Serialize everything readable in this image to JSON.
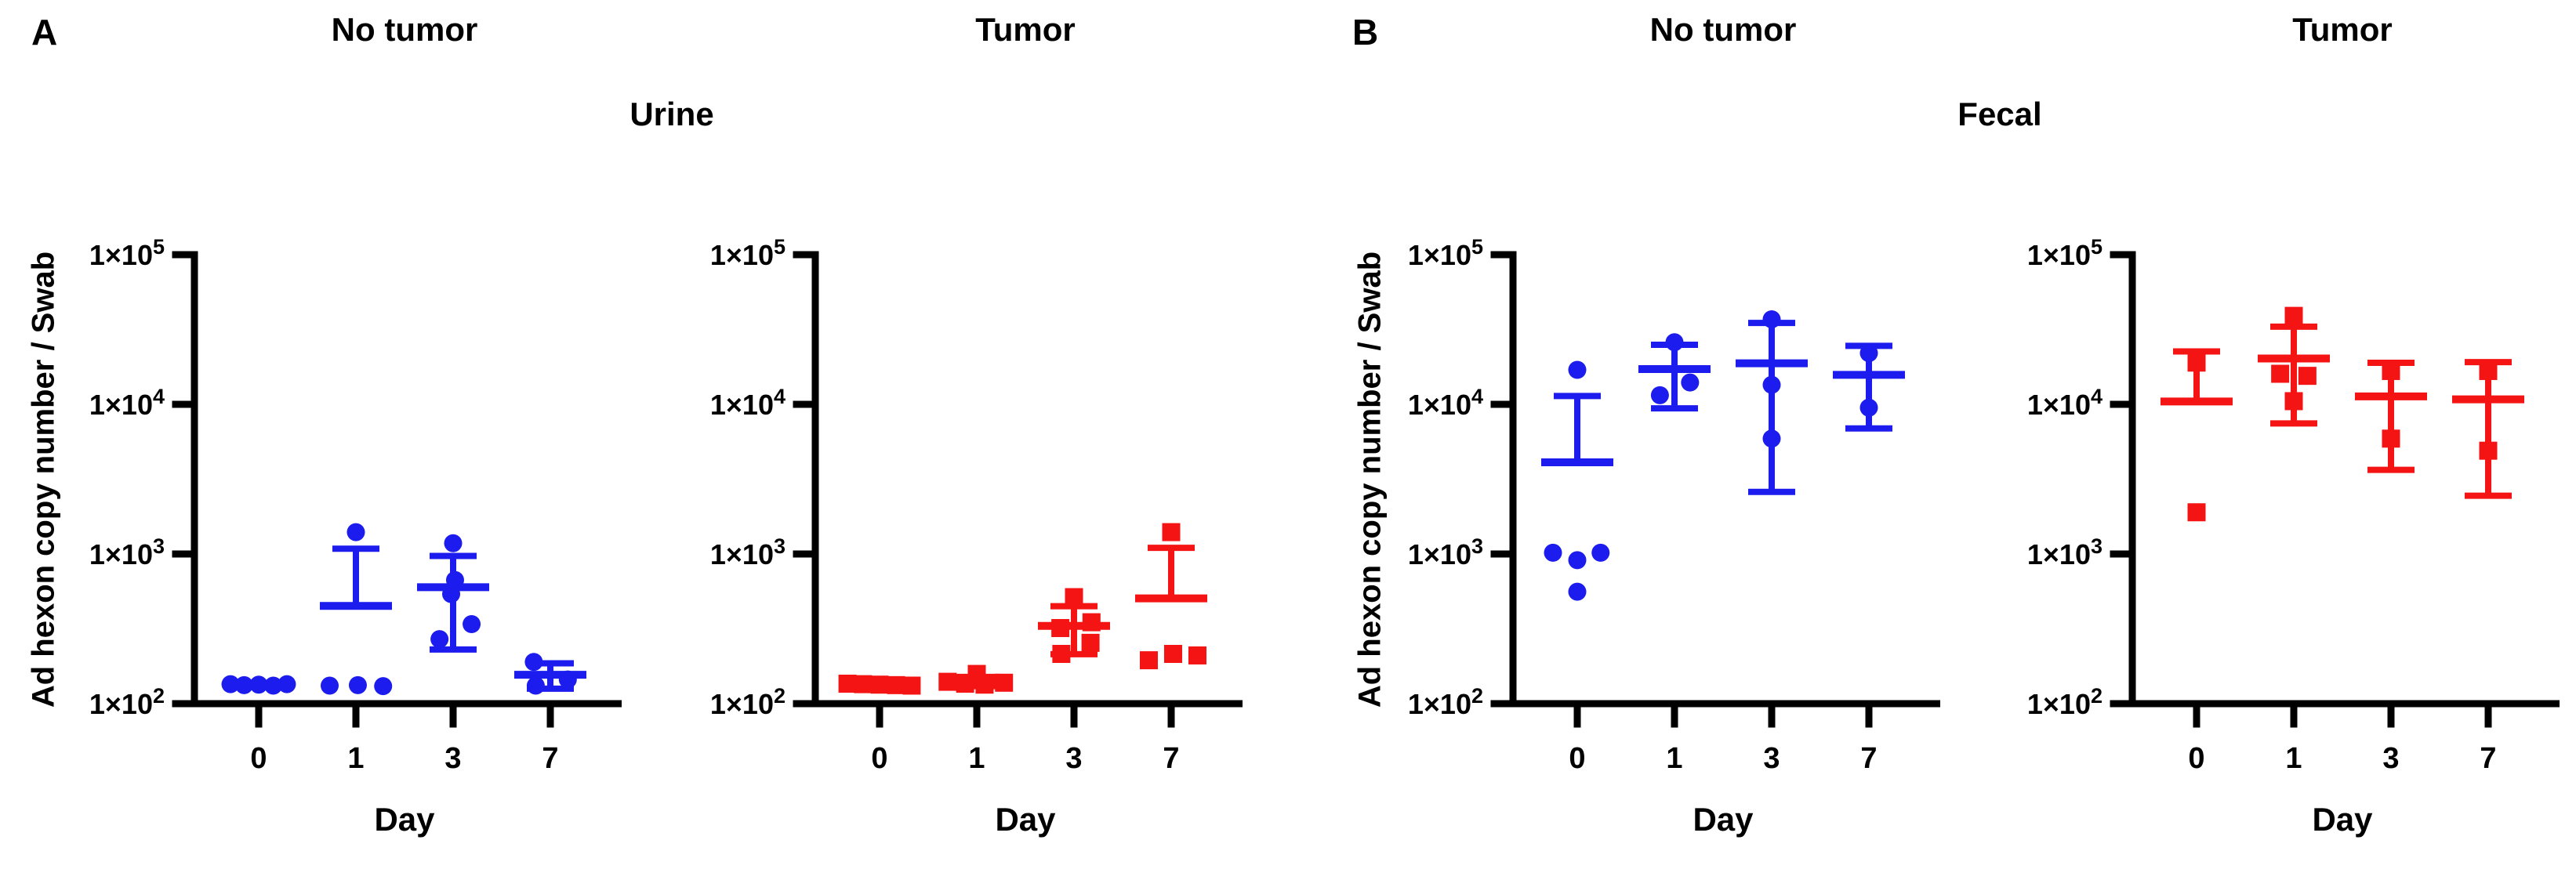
{
  "figure": {
    "background": "#ffffff",
    "colors": {
      "no_tumor": "#1c1cee",
      "tumor": "#f51414",
      "axis": "#000000"
    },
    "panels": [
      {
        "label": "A",
        "assay_title": "Urine",
        "column_titles": [
          "No tumor",
          "Tumor"
        ],
        "y_axis_label": "Ad hexon copy number / Swab",
        "x_axis_label": "Day"
      },
      {
        "label": "B",
        "assay_title": "Fecal",
        "column_titles": [
          "No tumor",
          "Tumor"
        ],
        "y_axis_label": "Ad hexon copy number / Swab",
        "x_axis_label": "Day"
      }
    ]
  },
  "chart_data": [
    {
      "type": "scatter",
      "panel": "A",
      "sample": "Urine",
      "title": "No tumor",
      "marker": {
        "shape": "circle",
        "color": "#1c1cee",
        "semantic": "no-tumor-mouse"
      },
      "xlabel": "Day",
      "ylabel": "Ad hexon copy number / Swab",
      "x_categories": [
        "0",
        "1",
        "3",
        "7"
      ],
      "y_scale": "log",
      "y_range": [
        100,
        100000
      ],
      "grid": false,
      "error_bar_type": "mean ± SD",
      "y_ticks": [
        {
          "mantissa": "1×10",
          "exponent": "2"
        },
        {
          "mantissa": "1×10",
          "exponent": "3"
        },
        {
          "mantissa": "1×10",
          "exponent": "4"
        },
        {
          "mantissa": "1×10",
          "exponent": "5"
        }
      ],
      "groups": [
        {
          "day": "0",
          "values": [
            135,
            133,
            134,
            132,
            135
          ],
          "jitter": [
            -0.29,
            -0.15,
            0,
            0.15,
            0.29
          ],
          "mean": null,
          "sd": null
        },
        {
          "day": "1",
          "values": [
            1400,
            132,
            133,
            131
          ],
          "jitter": [
            0,
            -0.27,
            0.02,
            0.28
          ],
          "mean": 450,
          "sd": 635
        },
        {
          "day": "3",
          "values": [
            1180,
            670,
            540,
            340,
            270
          ],
          "jitter": [
            0,
            0.02,
            -0.02,
            0.19,
            -0.14
          ],
          "mean": 600,
          "sd": 370
        },
        {
          "day": "7",
          "values": [
            190,
            145,
            132
          ],
          "jitter": [
            -0.17,
            0.18,
            -0.15
          ],
          "mean": 156,
          "sd": 30
        }
      ]
    },
    {
      "type": "scatter",
      "panel": "A",
      "sample": "Urine",
      "title": "Tumor",
      "marker": {
        "shape": "square",
        "color": "#f51414",
        "semantic": "tumor-mouse"
      },
      "xlabel": "Day",
      "ylabel": "Ad hexon copy number / Swab",
      "x_categories": [
        "0",
        "1",
        "3",
        "7"
      ],
      "y_scale": "log",
      "y_range": [
        100,
        100000
      ],
      "grid": false,
      "error_bar_type": "mean ± SD",
      "y_ticks": [
        {
          "mantissa": "1×10",
          "exponent": "2"
        },
        {
          "mantissa": "1×10",
          "exponent": "3"
        },
        {
          "mantissa": "1×10",
          "exponent": "4"
        },
        {
          "mantissa": "1×10",
          "exponent": "5"
        }
      ],
      "groups": [
        {
          "day": "0",
          "values": [
            136,
            135,
            134,
            133,
            132
          ],
          "jitter": [
            -0.33,
            -0.17,
            0,
            0.17,
            0.33
          ],
          "mean": null,
          "sd": null
        },
        {
          "day": "1",
          "values": [
            158,
            140,
            136,
            134,
            138
          ],
          "jitter": [
            0,
            -0.3,
            -0.12,
            0.08,
            0.28
          ],
          "mean": 141,
          "sd": 10
        },
        {
          "day": "3",
          "values": [
            515,
            350,
            320,
            255,
            215
          ],
          "jitter": [
            0,
            0.18,
            -0.14,
            0.17,
            -0.13
          ],
          "mean": 331,
          "sd": 117
        },
        {
          "day": "7",
          "values": [
            1400,
            215,
            210,
            195
          ],
          "jitter": [
            0,
            0.02,
            0.27,
            -0.23
          ],
          "mean": 505,
          "sd": 595
        }
      ]
    },
    {
      "type": "scatter",
      "panel": "B",
      "sample": "Fecal",
      "title": "No tumor",
      "marker": {
        "shape": "circle",
        "color": "#1c1cee",
        "semantic": "no-tumor-mouse"
      },
      "xlabel": "Day",
      "ylabel": "Ad hexon copy number / Swab",
      "x_categories": [
        "0",
        "1",
        "3",
        "7"
      ],
      "y_scale": "log",
      "y_range": [
        100,
        100000
      ],
      "grid": false,
      "error_bar_type": "mean ± SD",
      "y_ticks": [
        {
          "mantissa": "1×10",
          "exponent": "2"
        },
        {
          "mantissa": "1×10",
          "exponent": "3"
        },
        {
          "mantissa": "1×10",
          "exponent": "4"
        },
        {
          "mantissa": "1×10",
          "exponent": "5"
        }
      ],
      "groups": [
        {
          "day": "0",
          "values": [
            17000,
            1020,
            1020,
            910,
            560
          ],
          "jitter": [
            0,
            -0.25,
            0.24,
            0,
            0
          ],
          "mean": 4100,
          "sd": 7260
        },
        {
          "day": "1",
          "values": [
            26000,
            14000,
            11500
          ],
          "jitter": [
            0,
            0.16,
            -0.15
          ],
          "mean": 17200,
          "sd": 7800
        },
        {
          "day": "3",
          "values": [
            37000,
            13500,
            5900
          ],
          "jitter": [
            0,
            0,
            0
          ],
          "mean": 18800,
          "sd": 16200
        },
        {
          "day": "7",
          "values": [
            22000,
            9500
          ],
          "jitter": [
            0,
            0
          ],
          "mean": 15750,
          "sd": 8850
        }
      ]
    },
    {
      "type": "scatter",
      "panel": "B",
      "sample": "Fecal",
      "title": "Tumor",
      "marker": {
        "shape": "square",
        "color": "#f51414",
        "semantic": "tumor-mouse"
      },
      "xlabel": "Day",
      "ylabel": "Ad hexon copy number / Swab",
      "x_categories": [
        "0",
        "1",
        "3",
        "7"
      ],
      "y_scale": "log",
      "y_range": [
        100,
        100000
      ],
      "grid": false,
      "error_bar_type": "mean ± SD",
      "y_ticks": [
        {
          "mantissa": "1×10",
          "exponent": "2"
        },
        {
          "mantissa": "1×10",
          "exponent": "3"
        },
        {
          "mantissa": "1×10",
          "exponent": "4"
        },
        {
          "mantissa": "1×10",
          "exponent": "5"
        }
      ],
      "groups": [
        {
          "day": "0",
          "values": [
            19000,
            1900
          ],
          "jitter": [
            0,
            0
          ],
          "mean": 10450,
          "sd": 12100
        },
        {
          "day": "1",
          "values": [
            39000,
            16000,
            15500,
            10500
          ],
          "jitter": [
            0,
            -0.14,
            0.14,
            0
          ],
          "mean": 20250,
          "sd": 12800
        },
        {
          "day": "3",
          "values": [
            16700,
            5900
          ],
          "jitter": [
            0,
            0
          ],
          "mean": 11300,
          "sd": 7650
        },
        {
          "day": "7",
          "values": [
            16700,
            4900
          ],
          "jitter": [
            0,
            0
          ],
          "mean": 10800,
          "sd": 8350
        }
      ]
    }
  ]
}
